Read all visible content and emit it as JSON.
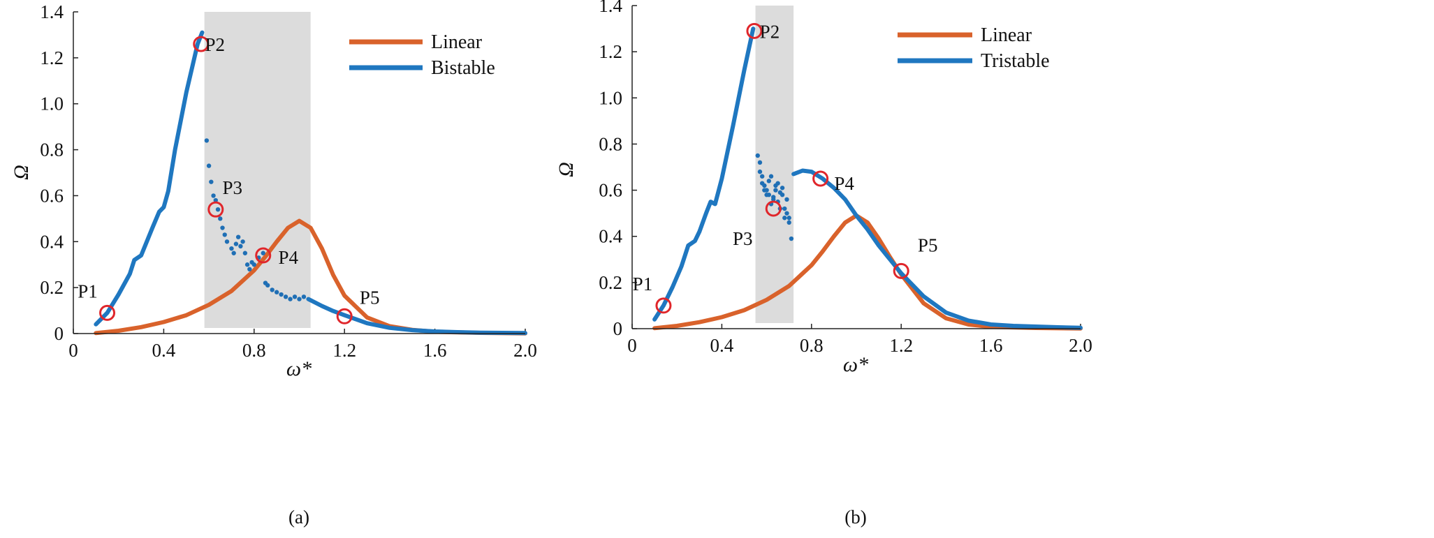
{
  "colors": {
    "linear": "#d9622b",
    "bistable": "#1f77c0",
    "tristable": "#1f77c0",
    "shade": "#dcdcdc",
    "marker": "#e0262b",
    "dots": "#1f6fb5"
  },
  "chart_data": [
    {
      "type": "line",
      "panel_label": "(a)",
      "xlabel": "ω*",
      "ylabel": "Ω",
      "xlim": [
        0,
        2.0
      ],
      "ylim": [
        0,
        1.4
      ],
      "xticks": [
        "0",
        "0.4",
        "0.8",
        "1.2",
        "1.6",
        "2.0"
      ],
      "yticks": [
        "0",
        "0.2",
        "0.4",
        "0.6",
        "0.8",
        "1.0",
        "1.2",
        "1.4"
      ],
      "shaded_x_range": [
        0.58,
        1.05
      ],
      "legend": [
        "Linear",
        "Bistable"
      ],
      "series": [
        {
          "name": "Linear",
          "x": [
            0.1,
            0.2,
            0.3,
            0.4,
            0.5,
            0.6,
            0.7,
            0.8,
            0.85,
            0.9,
            0.95,
            1.0,
            1.05,
            1.1,
            1.15,
            1.2,
            1.3,
            1.4,
            1.5,
            1.6,
            1.8,
            2.0
          ],
          "y": [
            0.002,
            0.012,
            0.028,
            0.05,
            0.08,
            0.125,
            0.185,
            0.275,
            0.335,
            0.4,
            0.46,
            0.49,
            0.46,
            0.37,
            0.255,
            0.165,
            0.07,
            0.032,
            0.016,
            0.008,
            0.003,
            0.001
          ]
        },
        {
          "name": "Bistable",
          "x": [
            0.1,
            0.15,
            0.2,
            0.25,
            0.27,
            0.3,
            0.35,
            0.38,
            0.4,
            0.42,
            0.45,
            0.5,
            0.55,
            0.57
          ],
          "y": [
            0.04,
            0.09,
            0.17,
            0.26,
            0.32,
            0.34,
            0.46,
            0.53,
            0.55,
            0.62,
            0.8,
            1.05,
            1.26,
            1.31
          ]
        },
        {
          "name": "Bistable",
          "x": [
            1.04,
            1.1,
            1.15,
            1.2,
            1.3,
            1.4,
            1.5,
            1.6,
            1.7,
            1.8,
            1.9,
            2.0
          ],
          "y": [
            0.15,
            0.12,
            0.098,
            0.08,
            0.045,
            0.025,
            0.015,
            0.009,
            0.006,
            0.004,
            0.003,
            0.002
          ]
        }
      ],
      "scatter": {
        "name": "Bistable",
        "x": [
          0.59,
          0.6,
          0.61,
          0.62,
          0.63,
          0.64,
          0.65,
          0.66,
          0.67,
          0.68,
          0.7,
          0.71,
          0.72,
          0.73,
          0.74,
          0.75,
          0.76,
          0.77,
          0.78,
          0.79,
          0.8,
          0.82,
          0.84,
          0.85,
          0.86,
          0.88,
          0.9,
          0.92,
          0.94,
          0.96,
          0.98,
          1.0,
          1.02
        ],
        "y": [
          0.84,
          0.73,
          0.66,
          0.6,
          0.58,
          0.54,
          0.5,
          0.46,
          0.43,
          0.4,
          0.37,
          0.35,
          0.39,
          0.42,
          0.38,
          0.4,
          0.35,
          0.3,
          0.28,
          0.31,
          0.3,
          0.33,
          0.35,
          0.22,
          0.21,
          0.19,
          0.18,
          0.17,
          0.16,
          0.15,
          0.16,
          0.15,
          0.16
        ]
      },
      "annotations": [
        {
          "label": "P1",
          "x": 0.15,
          "y": 0.09
        },
        {
          "label": "P2",
          "x": 0.565,
          "y": 1.26
        },
        {
          "label": "P3",
          "x": 0.63,
          "y": 0.54
        },
        {
          "label": "P4",
          "x": 0.84,
          "y": 0.34
        },
        {
          "label": "P5",
          "x": 1.2,
          "y": 0.075
        }
      ]
    },
    {
      "type": "line",
      "panel_label": "(b)",
      "xlabel": "ω*",
      "ylabel": "Ω",
      "xlim": [
        0,
        2.0
      ],
      "ylim": [
        0,
        1.4
      ],
      "xticks": [
        "0",
        "0.4",
        "0.8",
        "1.2",
        "1.6",
        "2.0"
      ],
      "yticks": [
        "0",
        "0.2",
        "0.4",
        "0.6",
        "0.8",
        "1.0",
        "1.2",
        "1.4"
      ],
      "shaded_x_range": [
        0.55,
        0.72
      ],
      "legend": [
        "Linear",
        "Tristable"
      ],
      "series": [
        {
          "name": "Linear",
          "x": [
            0.1,
            0.2,
            0.3,
            0.4,
            0.5,
            0.6,
            0.7,
            0.8,
            0.85,
            0.9,
            0.95,
            1.0,
            1.05,
            1.1,
            1.15,
            1.2,
            1.3,
            1.4,
            1.5,
            1.6,
            1.8,
            2.0
          ],
          "y": [
            0.002,
            0.012,
            0.028,
            0.05,
            0.08,
            0.125,
            0.185,
            0.275,
            0.335,
            0.4,
            0.46,
            0.49,
            0.46,
            0.39,
            0.31,
            0.235,
            0.11,
            0.045,
            0.018,
            0.008,
            0.003,
            0.001
          ]
        },
        {
          "name": "Tristable",
          "x": [
            0.1,
            0.14,
            0.18,
            0.22,
            0.25,
            0.28,
            0.3,
            0.33,
            0.35,
            0.37,
            0.4,
            0.45,
            0.5,
            0.54
          ],
          "y": [
            0.04,
            0.1,
            0.18,
            0.27,
            0.36,
            0.38,
            0.42,
            0.5,
            0.55,
            0.54,
            0.65,
            0.88,
            1.12,
            1.3
          ]
        },
        {
          "name": "Tristable",
          "x": [
            0.72,
            0.76,
            0.8,
            0.85,
            0.9,
            0.95,
            1.0,
            1.05,
            1.1,
            1.15,
            1.2,
            1.3,
            1.4,
            1.5,
            1.6,
            1.7,
            1.8,
            1.9,
            2.0
          ],
          "y": [
            0.67,
            0.685,
            0.68,
            0.65,
            0.61,
            0.56,
            0.49,
            0.43,
            0.36,
            0.3,
            0.24,
            0.14,
            0.07,
            0.035,
            0.018,
            0.012,
            0.009,
            0.006,
            0.004
          ]
        }
      ],
      "scatter": {
        "name": "Tristable",
        "x": [
          0.56,
          0.57,
          0.58,
          0.59,
          0.6,
          0.61,
          0.62,
          0.63,
          0.64,
          0.65,
          0.66,
          0.67,
          0.68,
          0.69,
          0.7,
          0.71,
          0.57,
          0.59,
          0.61,
          0.63,
          0.65,
          0.67,
          0.69,
          0.6,
          0.62,
          0.66,
          0.68,
          0.7,
          0.64,
          0.58
        ],
        "y": [
          0.75,
          0.72,
          0.66,
          0.62,
          0.6,
          0.58,
          0.66,
          0.56,
          0.6,
          0.63,
          0.52,
          0.58,
          0.48,
          0.56,
          0.46,
          0.39,
          0.68,
          0.6,
          0.64,
          0.57,
          0.55,
          0.61,
          0.5,
          0.58,
          0.54,
          0.59,
          0.52,
          0.48,
          0.62,
          0.63
        ]
      },
      "annotations": [
        {
          "label": "P1",
          "x": 0.14,
          "y": 0.1
        },
        {
          "label": "P2",
          "x": 0.545,
          "y": 1.29
        },
        {
          "label": "P3",
          "x": 0.63,
          "y": 0.52
        },
        {
          "label": "P4",
          "x": 0.84,
          "y": 0.65
        },
        {
          "label": "P5",
          "x": 1.2,
          "y": 0.25
        }
      ]
    }
  ]
}
